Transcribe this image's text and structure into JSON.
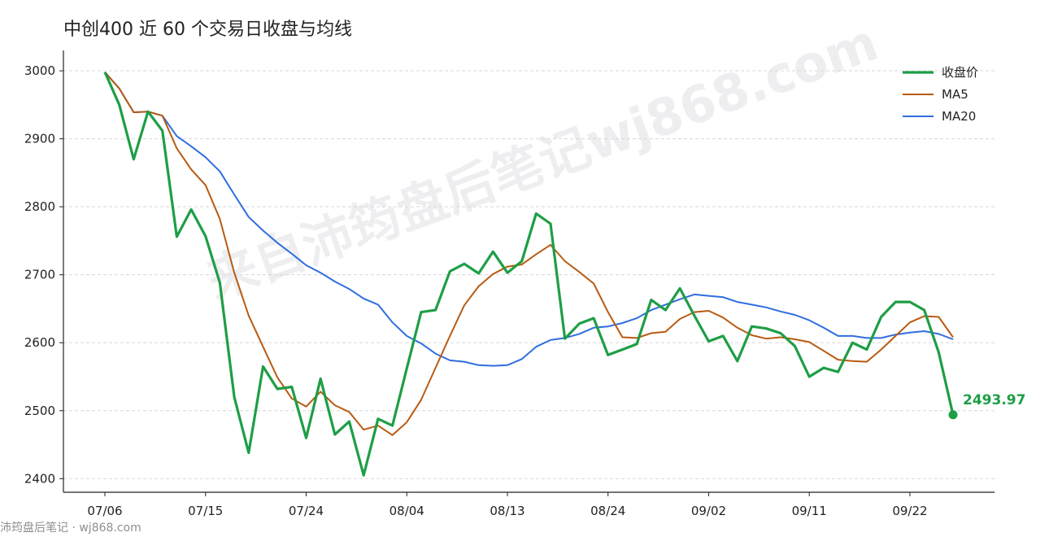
{
  "chart_data": {
    "type": "line",
    "title": "中创400 近 60 个交易日收盘与均线",
    "xlabel": "",
    "ylabel": "",
    "ylim": [
      2380,
      3030
    ],
    "yticks": [
      2400,
      2500,
      2600,
      2700,
      2800,
      2900,
      3000
    ],
    "xtick_labels": [
      "07/06",
      "07/15",
      "07/24",
      "08/04",
      "08/13",
      "08/24",
      "09/02",
      "09/11",
      "09/22"
    ],
    "xtick_indices": [
      0,
      7,
      14,
      21,
      28,
      35,
      42,
      49,
      56
    ],
    "grid": "horizontal dashed",
    "legend_position": "top-right",
    "last_value_label": "2493.97",
    "colors": {
      "close": "#1e9e46",
      "ma5": "#b85b12",
      "ma20": "#2f6ee0"
    },
    "series": [
      {
        "name": "收盘价",
        "values": [
          2998,
          2950,
          2870,
          2940,
          2912,
          2756,
          2796,
          2757,
          2688,
          2520,
          2438,
          2565,
          2532,
          2535,
          2460,
          2547,
          2465,
          2484,
          2405,
          2488,
          2478,
          2562,
          2645,
          2648,
          2705,
          2716,
          2702,
          2734,
          2703,
          2720,
          2790,
          2775,
          2606,
          2628,
          2636,
          2582,
          2590,
          2598,
          2663,
          2648,
          2680,
          2640,
          2602,
          2610,
          2573,
          2624,
          2621,
          2614,
          2595,
          2550,
          2563,
          2557,
          2600,
          2590,
          2638,
          2660,
          2660,
          2648,
          2586,
          2493.97
        ]
      },
      {
        "name": "MA5",
        "values": [
          2998,
          2974,
          2939,
          2940,
          2934,
          2886,
          2855,
          2832,
          2782,
          2703,
          2640,
          2594,
          2549,
          2518,
          2506,
          2528,
          2508,
          2498,
          2472,
          2478,
          2464,
          2483,
          2516,
          2563,
          2610,
          2655,
          2683,
          2701,
          2712,
          2715,
          2730,
          2744,
          2720,
          2704,
          2687,
          2645,
          2608,
          2607,
          2614,
          2616,
          2635,
          2645,
          2647,
          2637,
          2622,
          2611,
          2606,
          2608,
          2605,
          2601,
          2588,
          2575,
          2573,
          2572,
          2590,
          2610,
          2630,
          2639,
          2638,
          2608
        ]
      },
      {
        "name": "MA20",
        "values": [
          2998,
          2974,
          2939,
          2940,
          2934,
          2904,
          2889,
          2873,
          2852,
          2818,
          2785,
          2765,
          2747,
          2731,
          2714,
          2703,
          2690,
          2679,
          2665,
          2656,
          2630,
          2610,
          2599,
          2584,
          2574,
          2572,
          2567,
          2566,
          2567,
          2576,
          2594,
          2604,
          2607,
          2613,
          2622,
          2624,
          2629,
          2636,
          2648,
          2656,
          2664,
          2671,
          2669,
          2667,
          2660,
          2656,
          2652,
          2646,
          2641,
          2633,
          2622,
          2610,
          2610,
          2607,
          2607,
          2612,
          2615,
          2617,
          2613,
          2605
        ]
      }
    ]
  },
  "watermark_text": "来自沛筠盘后笔记wj868.com",
  "footer_text": "沛筠盘后笔记 · wj868.com"
}
